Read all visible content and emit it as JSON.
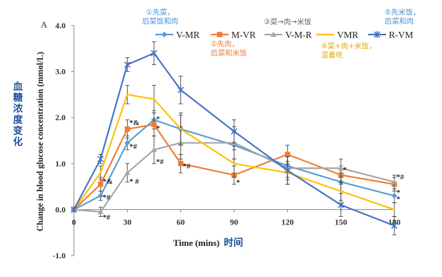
{
  "chart_data": {
    "type": "line",
    "panel_label": "A",
    "xlabel": "Time (mins)",
    "xlabel_cn": "时间",
    "ylabel": "Change in blood glucose concentration (mmol/L)",
    "ylabel_cn": "血糖浓度变化",
    "xlim": [
      0,
      180
    ],
    "ylim": [
      -1.0,
      4.0
    ],
    "x_ticks": [
      0,
      30,
      60,
      90,
      120,
      150
    ],
    "x_tick_labels": [
      "0",
      "30",
      "60",
      "90",
      "120",
      "150"
    ],
    "y_ticks": [
      -1.0,
      0.0,
      1.0,
      2.0,
      3.0,
      4.0
    ],
    "y_tick_labels": [
      "-1.0",
      "0.0",
      "1.0",
      "2.0",
      "3.0",
      "4.0"
    ],
    "x_end_label": "180",
    "grid": false,
    "legend_position": "top",
    "x": [
      0,
      15,
      30,
      45,
      60,
      90,
      120,
      150,
      180
    ],
    "series": [
      {
        "name": "V-MR",
        "color": "#5b9bd5",
        "marker": "diamond",
        "values": [
          0,
          0.3,
          1.45,
          1.95,
          1.75,
          1.4,
          0.95,
          0.6,
          0.3
        ],
        "errors": [
          0,
          0.1,
          0.15,
          0.2,
          0.3,
          0.3,
          0.25,
          0.2,
          0.15
        ]
      },
      {
        "name": "M-VR",
        "color": "#ed7d31",
        "marker": "square",
        "values": [
          0,
          0.55,
          1.75,
          1.85,
          1.0,
          0.75,
          1.2,
          0.75,
          0.55
        ],
        "errors": [
          0,
          0.15,
          0.2,
          0.25,
          0.2,
          0.2,
          0.2,
          0.2,
          0.15
        ]
      },
      {
        "name": "V-M-R",
        "color": "#a5a5a5",
        "marker": "triangle",
        "values": [
          0,
          -0.05,
          0.8,
          1.3,
          1.45,
          1.45,
          0.9,
          0.9,
          0.6
        ],
        "errors": [
          0,
          0.1,
          0.2,
          0.3,
          0.35,
          0.35,
          0.25,
          0.2,
          0.15
        ]
      },
      {
        "name": "VMR",
        "color": "#ffc000",
        "marker": "none",
        "values": [
          0,
          0.8,
          2.5,
          2.4,
          1.75,
          1.0,
          0.8,
          0.4,
          0.0
        ],
        "errors": [
          0,
          0.15,
          0.2,
          0.3,
          0.35,
          0.3,
          0.25,
          0.2,
          0.15
        ]
      },
      {
        "name": "R-VM",
        "color": "#4472c4",
        "marker": "x",
        "values": [
          0,
          1.1,
          3.15,
          3.4,
          2.6,
          1.7,
          0.85,
          0.1,
          -0.35
        ],
        "errors": [
          0,
          0.1,
          0.15,
          0.25,
          0.3,
          0.25,
          0.3,
          0.25,
          0.2
        ]
      }
    ],
    "annotations": [
      {
        "text": "*&",
        "x": 15,
        "y": 0.62
      },
      {
        "text": "*#",
        "x": 15,
        "y": 0.28
      },
      {
        "text": "*#",
        "x": 15,
        "y": -0.16
      },
      {
        "text": "*&",
        "x": 30,
        "y": 1.9
      },
      {
        "text": "*#",
        "x": 30,
        "y": 1.38
      },
      {
        "text": "* #",
        "x": 30,
        "y": 0.62
      },
      {
        "text": "*",
        "x": 45,
        "y": 1.98
      },
      {
        "text": "*",
        "x": 45,
        "y": 1.78
      },
      {
        "text": "*#",
        "x": 45,
        "y": 1.05
      },
      {
        "text": "*#",
        "x": 60,
        "y": 0.95
      },
      {
        "text": "*",
        "x": 90,
        "y": 0.6
      },
      {
        "text": "*",
        "x": 150,
        "y": 0.88
      },
      {
        "text": "*#",
        "x": 180,
        "y": 0.72
      },
      {
        "text": "*",
        "x": 180,
        "y": 0.38
      },
      {
        "text": "*",
        "x": 180,
        "y": 0.24
      }
    ],
    "notes": [
      {
        "lines": [
          "①先菜，",
          "后菜饭和肉"
        ],
        "color": "#4a90d9"
      },
      {
        "lines": [
          "②先肉，",
          "后菜和米饭"
        ],
        "color": "#ed7d31"
      },
      {
        "lines": [
          "③菜→肉→米饭"
        ],
        "color": "#666666"
      },
      {
        "lines": [
          "④菜+肉+米饭，",
          "混着吃"
        ],
        "color": "#e0a800"
      },
      {
        "lines": [
          "⑤先米饭，",
          "后菜和肉"
        ],
        "color": "#4a90d9"
      }
    ]
  }
}
